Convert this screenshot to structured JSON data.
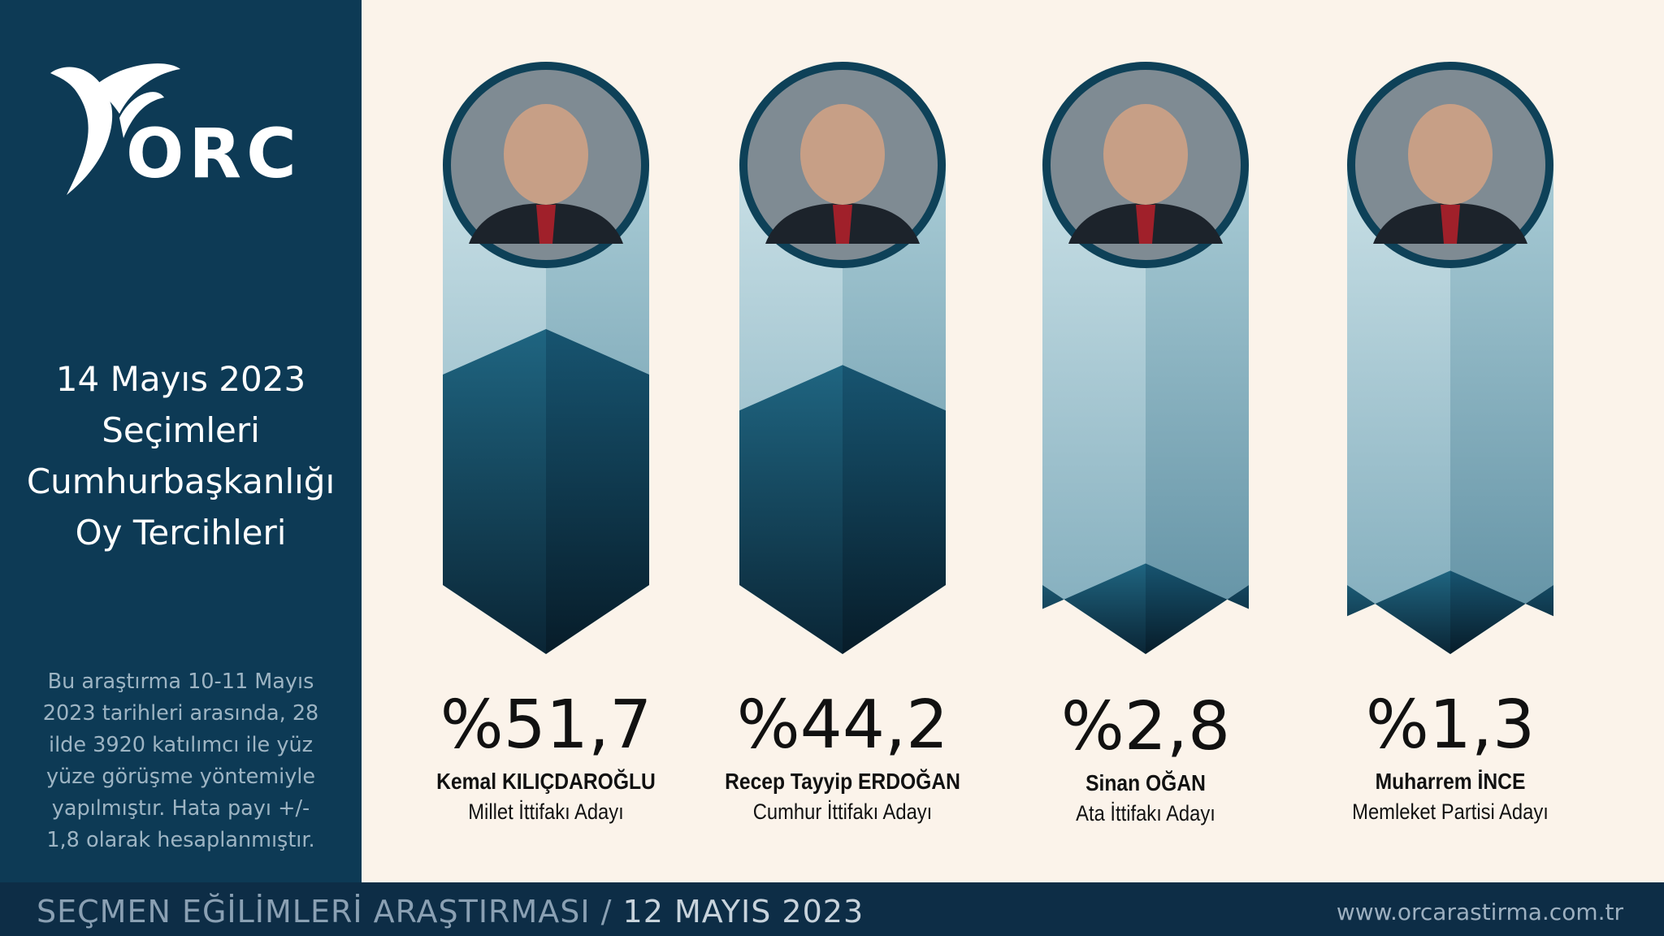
{
  "brand": {
    "logo_text": "ORC",
    "logo_icon": "orc-swoosh-icon"
  },
  "sidebar": {
    "title_lines": [
      "14 Mayıs 2023",
      "Seçimleri",
      "Cumhurbaşkanlığı",
      "Oy Tercihleri"
    ],
    "note": "Bu araştırma 10-11 Mayıs 2023 tarihleri arasında, 28 ilde 3920 katılımcı ile yüz yüze görüşme yöntemiyle yapılmıştır. Hata payı +/- 1,8 olarak hesaplanmıştır."
  },
  "footer": {
    "survey_label": "SEÇMEN EĞİLİMLERİ ARAŞTIRMASI /",
    "date_label": "12 MAYIS 2023",
    "website": "www.orcarastirma.com.tr"
  },
  "colors": {
    "sidebar_bg": "#0d3a55",
    "footer_bg": "#0d2d46",
    "page_bg": "#fbf3ea",
    "column_light": "#c3dce3",
    "column_mid": "#9ec3cf",
    "fill_dark": "#0c2c40",
    "fill_mid": "#1b5b74",
    "ring": "#0e4158"
  },
  "chart_data": {
    "type": "bar",
    "title": "",
    "categories": [
      "Kemal KILIÇDAROĞLU",
      "Recep Tayyip ERDOĞAN",
      "Sinan OĞAN",
      "Muharrem İNCE"
    ],
    "series": [
      {
        "values": [
          51.7,
          44.2,
          2.8,
          1.3
        ]
      }
    ],
    "value_labels": [
      "%51,7",
      "%44,2",
      "%2,8",
      "%1,3"
    ],
    "subtitles": [
      "Millet İttifakı Adayı",
      "Cumhur İttifakı Adayı",
      "Ata İttifakı Adayı",
      "Memleket Partisi Adayı"
    ],
    "portraits": [
      "portrait-kilicdaroglu",
      "portrait-erdogan",
      "portrait-ogan",
      "portrait-ince"
    ],
    "xlabel": "",
    "ylabel": "",
    "grid": false,
    "legend": "none"
  }
}
